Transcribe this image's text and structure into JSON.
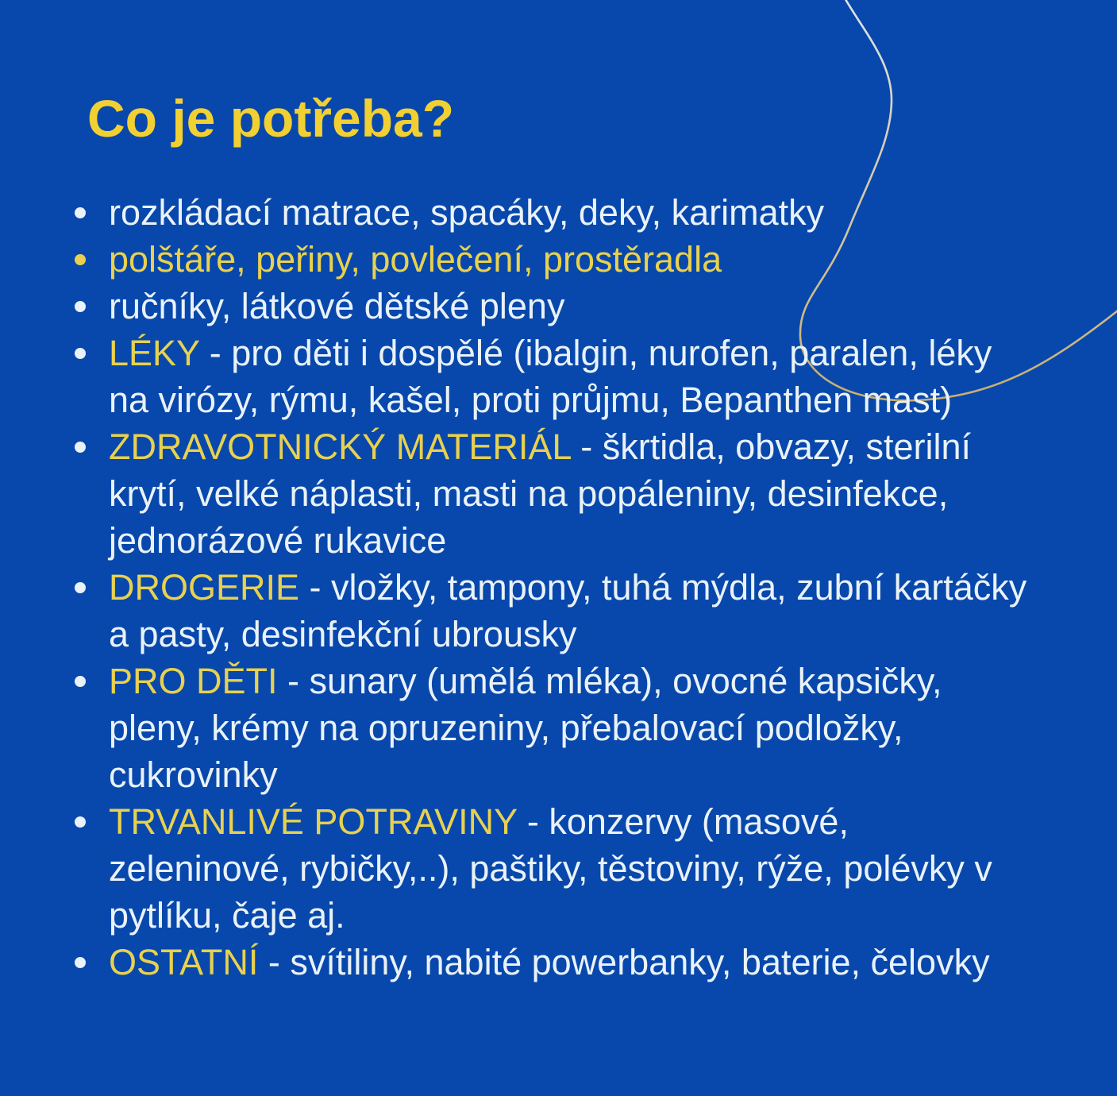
{
  "page": {
    "heading": "Co je potřeba?"
  },
  "colors": {
    "background": "#0848ac",
    "heading_yellow": "#f2d032",
    "item_yellow": "#e8d14f",
    "body_white": "#e9f2f8",
    "curve_top": "#dfe4e8",
    "curve_bottom": "#c9ae6d"
  },
  "list": {
    "items": [
      {
        "bullet": "white",
        "segments": [
          {
            "color": "white",
            "text": "rozkládací matrace, spacáky, deky, karimatky"
          }
        ]
      },
      {
        "bullet": "yellow",
        "segments": [
          {
            "color": "yellow",
            "text": "polštáře, peřiny, povlečení, prostěradla"
          }
        ]
      },
      {
        "bullet": "white",
        "segments": [
          {
            "color": "white",
            "text": "ručníky, látkové dětské pleny"
          }
        ]
      },
      {
        "bullet": "white",
        "segments": [
          {
            "color": "yellow",
            "text": "LÉKY"
          },
          {
            "color": "white",
            "text": " - pro děti i dospělé (ibalgin, nurofen, paralen, léky na virózy, rýmu, kašel, proti průjmu, Bepanthen mast)"
          }
        ]
      },
      {
        "bullet": "white",
        "segments": [
          {
            "color": "yellow",
            "text": "ZDRAVOTNICKÝ MATERIÁL"
          },
          {
            "color": "white",
            "text": " - škrtidla, obvazy, sterilní krytí, velké náplasti, masti na popáleniny, desinfekce, jednorázové rukavice"
          }
        ]
      },
      {
        "bullet": "white",
        "segments": [
          {
            "color": "yellow",
            "text": "DROGERIE"
          },
          {
            "color": "white",
            "text": " - vložky, tampony, tuhá mýdla, zubní kartáčky a pasty, desinfekční ubrousky"
          }
        ]
      },
      {
        "bullet": "white",
        "segments": [
          {
            "color": "yellow",
            "text": "PRO DĚTI"
          },
          {
            "color": "white",
            "text": " - sunary (umělá mléka), ovocné kapsičky, pleny, krémy na opruzeniny, přebalovací podložky, cukrovinky"
          }
        ]
      },
      {
        "bullet": "white",
        "segments": [
          {
            "color": "yellow",
            "text": "TRVANLIVÉ POTRAVINY"
          },
          {
            "color": "white",
            "text": " - konzervy (masové, zeleninové, rybičky,..), paštiky, těstoviny, rýže, polévky v pytlíku, čaje aj."
          }
        ]
      },
      {
        "bullet": "white",
        "segments": [
          {
            "color": "yellow",
            "text": "OSTATNÍ"
          },
          {
            "color": "white",
            "text": " - svítiliny, nabité powerbanky, baterie, čelovky"
          }
        ]
      }
    ]
  }
}
